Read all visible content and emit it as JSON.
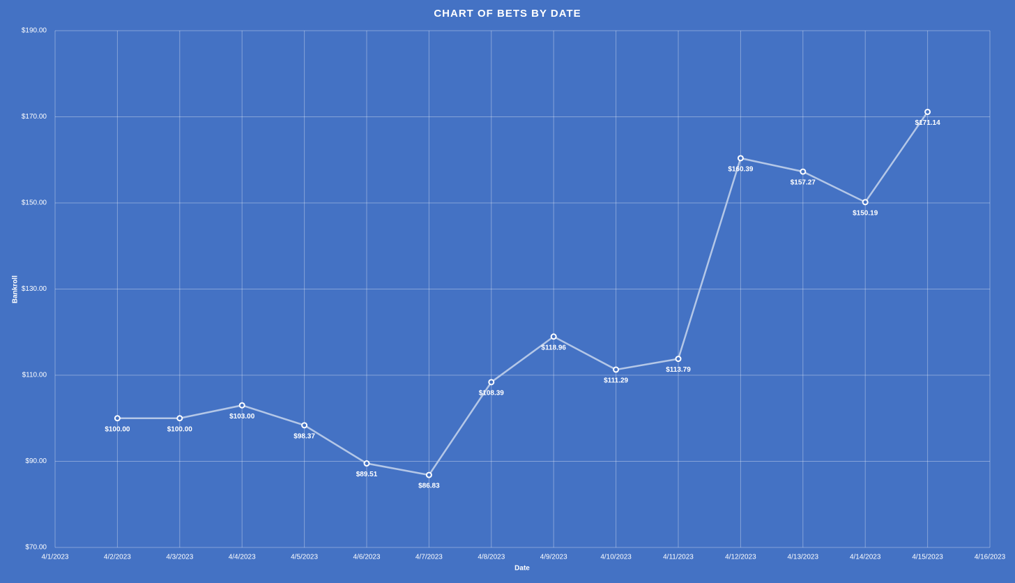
{
  "chart_data": {
    "type": "line",
    "title": "CHART OF BETS BY DATE",
    "x_label": "Date",
    "y_label": "Bankroll",
    "x": [
      "4/2/2023",
      "4/3/2023",
      "4/4/2023",
      "4/5/2023",
      "4/6/2023",
      "4/7/2023",
      "4/8/2023",
      "4/9/2023",
      "4/10/2023",
      "4/11/2023",
      "4/12/2023",
      "4/13/2023",
      "4/14/2023",
      "4/15/2023"
    ],
    "values": [
      100,
      100,
      103,
      98.37,
      89.51,
      86.83,
      108.39,
      118.96,
      111.29,
      113.79,
      160.39,
      157.27,
      150.19,
      171.14
    ],
    "value_labels": [
      "$100.00",
      "$100.00",
      "$103.00",
      "$98.37",
      "$89.51",
      "$86.83",
      "$108.39",
      "$118.96",
      "$111.29",
      "$113.79",
      "$160.39",
      "$157.27",
      "$150.19",
      "$171.14"
    ],
    "color": "#b4c7e7",
    "xlim": [
      "4/1/2023",
      "4/16/2023"
    ],
    "xticks": [
      "4/1/2023",
      "4/2/2023",
      "4/3/2023",
      "4/4/2023",
      "4/5/2023",
      "4/6/2023",
      "4/7/2023",
      "4/8/2023",
      "4/9/2023",
      "4/10/2023",
      "4/11/2023",
      "4/12/2023",
      "4/13/2023",
      "4/14/2023",
      "4/15/2023",
      "4/16/2023"
    ],
    "ylim": [
      70,
      190
    ],
    "yticks": [
      {
        "value": 70,
        "label": "$70.00"
      },
      {
        "value": 90,
        "label": "$90.00"
      },
      {
        "value": 110,
        "label": "$110.00"
      },
      {
        "value": 130,
        "label": "$130.00"
      },
      {
        "value": 150,
        "label": "$150.00"
      },
      {
        "value": 170,
        "label": "$170.00"
      },
      {
        "value": 190,
        "label": "$190.00"
      }
    ],
    "grid": true
  }
}
